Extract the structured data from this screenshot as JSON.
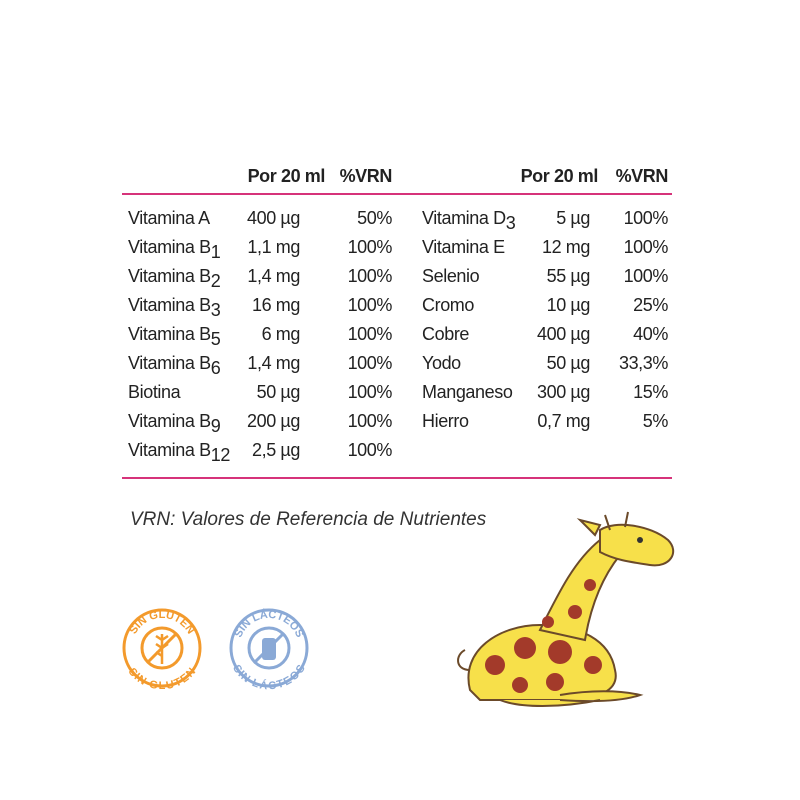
{
  "header": {
    "amount": "Por 20 ml",
    "vrn": "%VRN"
  },
  "left_table": {
    "rows": [
      {
        "name": "Vitamina A",
        "amount": "400 µg",
        "vrn": "50%"
      },
      {
        "name": "Vitamina B",
        "sub": "1",
        "amount": "1,1 mg",
        "vrn": "100%"
      },
      {
        "name": "Vitamina B",
        "sub": "2",
        "amount": "1,4 mg",
        "vrn": "100%"
      },
      {
        "name": "Vitamina B",
        "sub": "3",
        "amount": "16 mg",
        "vrn": "100%"
      },
      {
        "name": "Vitamina B",
        "sub": "5",
        "amount": "6 mg",
        "vrn": "100%"
      },
      {
        "name": "Vitamina B",
        "sub": "6",
        "amount": "1,4 mg",
        "vrn": "100%"
      },
      {
        "name": "Biotina",
        "amount": "50 µg",
        "vrn": "100%"
      },
      {
        "name": "Vitamina B",
        "sub": "9",
        "amount": "200 µg",
        "vrn": "100%"
      },
      {
        "name": "Vitamina B",
        "sub": "12",
        "amount": "2,5 µg",
        "vrn": "100%"
      }
    ]
  },
  "right_table": {
    "rows": [
      {
        "name": "Vitamina D",
        "sub": "3",
        "amount": "5 µg",
        "vrn": "100%"
      },
      {
        "name": "Vitamina E",
        "amount": "12 mg",
        "vrn": "100%"
      },
      {
        "name": "Selenio",
        "amount": "55 µg",
        "vrn": "100%"
      },
      {
        "name": "Cromo",
        "amount": "10 µg",
        "vrn": "25%"
      },
      {
        "name": "Cobre",
        "amount": "400 µg",
        "vrn": "40%"
      },
      {
        "name": "Yodo",
        "amount": "50 µg",
        "vrn": "33,3%"
      },
      {
        "name": "Manganeso",
        "amount": "300 µg",
        "vrn": "15%"
      },
      {
        "name": "Hierro",
        "amount": "0,7 mg",
        "vrn": "5%"
      }
    ]
  },
  "footnote": "VRN: Valores de Referencia de Nutrientes",
  "badges": [
    {
      "top": "SIN GLUTEN",
      "bottom": "SIN GLUTEN"
    },
    {
      "top": "SIN LÁCTEOS",
      "bottom": "SIN LÁCTEOS"
    }
  ]
}
